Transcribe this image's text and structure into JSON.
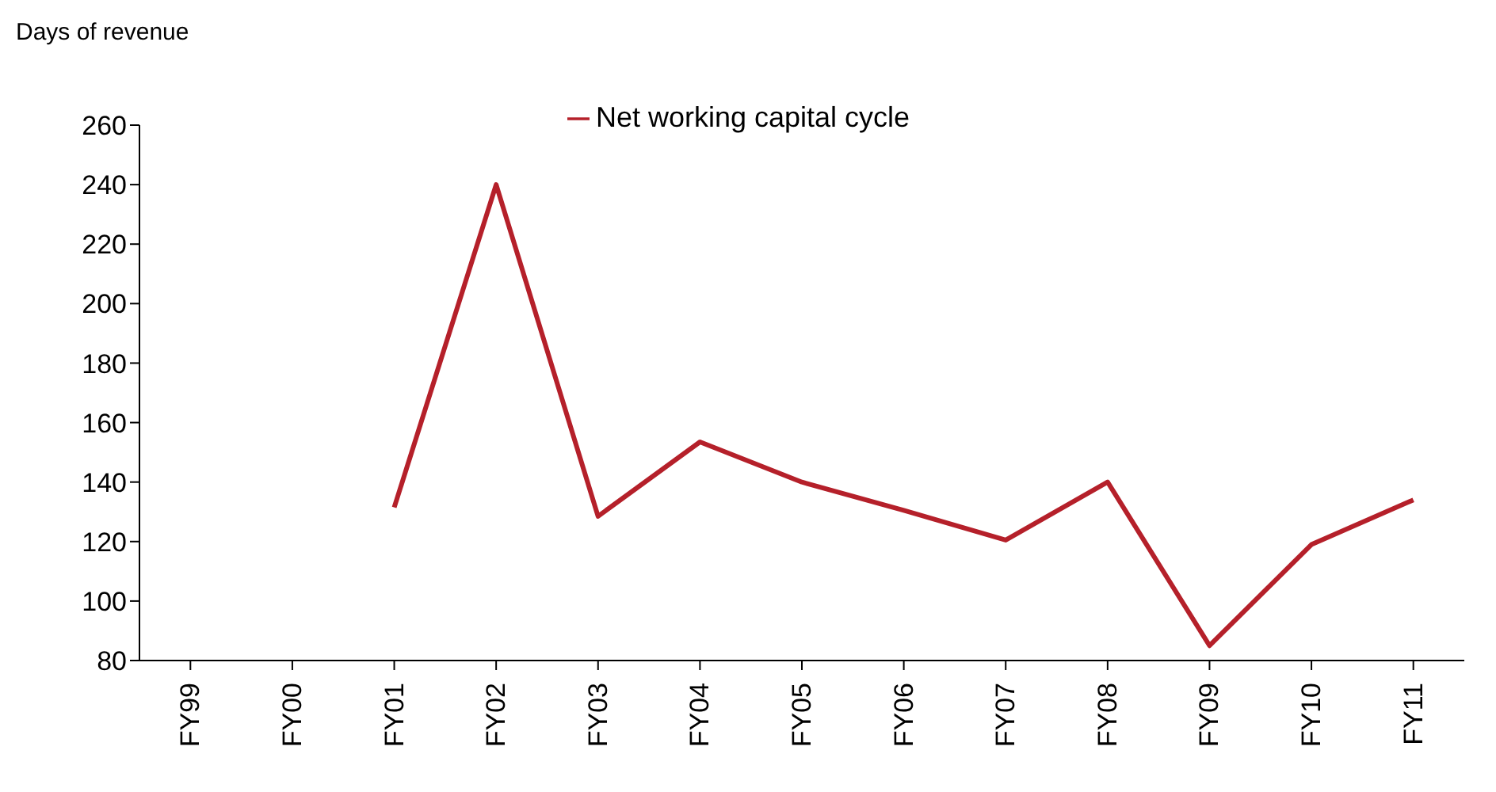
{
  "chart_data": {
    "type": "line",
    "ylabel": "Days of revenue",
    "categories": [
      "FY99",
      "FY00",
      "FY01",
      "FY02",
      "FY03",
      "FY04",
      "FY05",
      "FY06",
      "FY07",
      "FY08",
      "FY09",
      "FY10",
      "FY11"
    ],
    "series": [
      {
        "name": "Net working capital cycle",
        "color": "#b5202a",
        "values": [
          null,
          null,
          131.5,
          240,
          128.5,
          153.5,
          140,
          130.5,
          120.5,
          140,
          85,
          119,
          134
        ]
      }
    ],
    "ylim": [
      80,
      260
    ],
    "yticks": [
      80,
      100,
      120,
      140,
      160,
      180,
      200,
      220,
      240,
      260
    ],
    "grid": false,
    "legend": "top",
    "marker": "none",
    "line_style": "solid"
  }
}
